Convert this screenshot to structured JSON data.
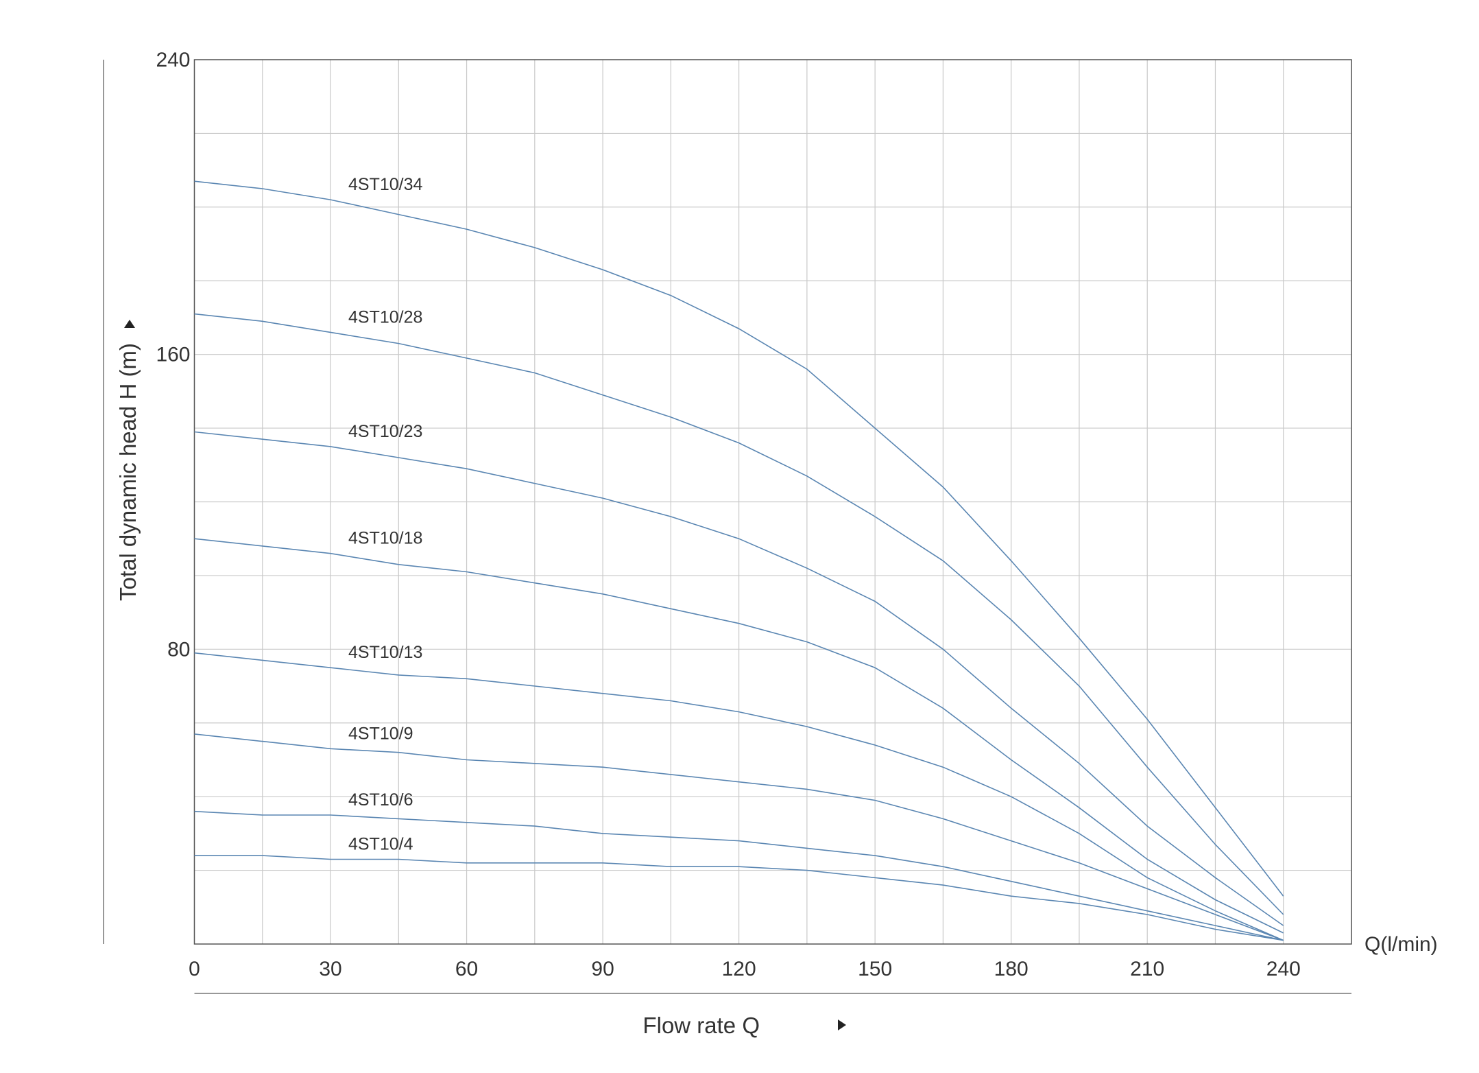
{
  "chart_data": {
    "type": "line",
    "x_label": "Flow rate Q",
    "y_label": "Total dynamic head H (m)",
    "x_unit_label": "Q(l/min)",
    "x": [
      0,
      15,
      30,
      45,
      60,
      75,
      90,
      105,
      120,
      135,
      150,
      165,
      180,
      195,
      210,
      225,
      240
    ],
    "series": [
      {
        "name": "4ST10/34",
        "color": "#5a86b2",
        "values": [
          207,
          205,
          202,
          198,
          194,
          189,
          183,
          176,
          167,
          156,
          140,
          124,
          104,
          83,
          61,
          37,
          13
        ]
      },
      {
        "name": "4ST10/28",
        "color": "#5a86b2",
        "values": [
          171,
          169,
          166,
          163,
          159,
          155,
          149,
          143,
          136,
          127,
          116,
          104,
          88,
          70,
          48,
          27,
          8
        ]
      },
      {
        "name": "4ST10/23",
        "color": "#5a86b2",
        "values": [
          139,
          137,
          135,
          132,
          129,
          125,
          121,
          116,
          110,
          102,
          93,
          80,
          64,
          49,
          32,
          18,
          5
        ]
      },
      {
        "name": "4ST10/18",
        "color": "#5a86b2",
        "values": [
          110,
          108,
          106,
          103,
          101,
          98,
          95,
          91,
          87,
          82,
          75,
          64,
          50,
          37,
          23,
          12,
          3
        ]
      },
      {
        "name": "4ST10/13",
        "color": "#5a86b2",
        "values": [
          79,
          77,
          75,
          73,
          72,
          70,
          68,
          66,
          63,
          59,
          54,
          48,
          40,
          30,
          18,
          9,
          1
        ]
      },
      {
        "name": "4ST10/9",
        "color": "#5a86b2",
        "values": [
          57,
          55,
          53,
          52,
          50,
          49,
          48,
          46,
          44,
          42,
          39,
          34,
          28,
          22,
          15,
          8,
          1
        ]
      },
      {
        "name": "4ST10/6",
        "color": "#5a86b2",
        "values": [
          36,
          35,
          35,
          34,
          33,
          32,
          30,
          29,
          28,
          26,
          24,
          21,
          17,
          13,
          9,
          5,
          1
        ]
      },
      {
        "name": "4ST10/4",
        "color": "#5a86b2",
        "values": [
          24,
          24,
          23,
          23,
          22,
          22,
          22,
          21,
          21,
          20,
          18,
          16,
          13,
          11,
          8,
          4,
          1
        ]
      }
    ],
    "xlim": [
      0,
      255
    ],
    "ylim": [
      0,
      240
    ],
    "xticks": [
      0,
      30,
      60,
      90,
      120,
      150,
      180,
      210,
      240
    ],
    "yticks": [
      80,
      160,
      240
    ],
    "x_grid": [
      15,
      45,
      75,
      105,
      135,
      165,
      195,
      225,
      255
    ],
    "y_grid": [
      20,
      40,
      60,
      100,
      120,
      140,
      180,
      200,
      220
    ],
    "grid": true,
    "grid_color": "#c9c9c9"
  }
}
